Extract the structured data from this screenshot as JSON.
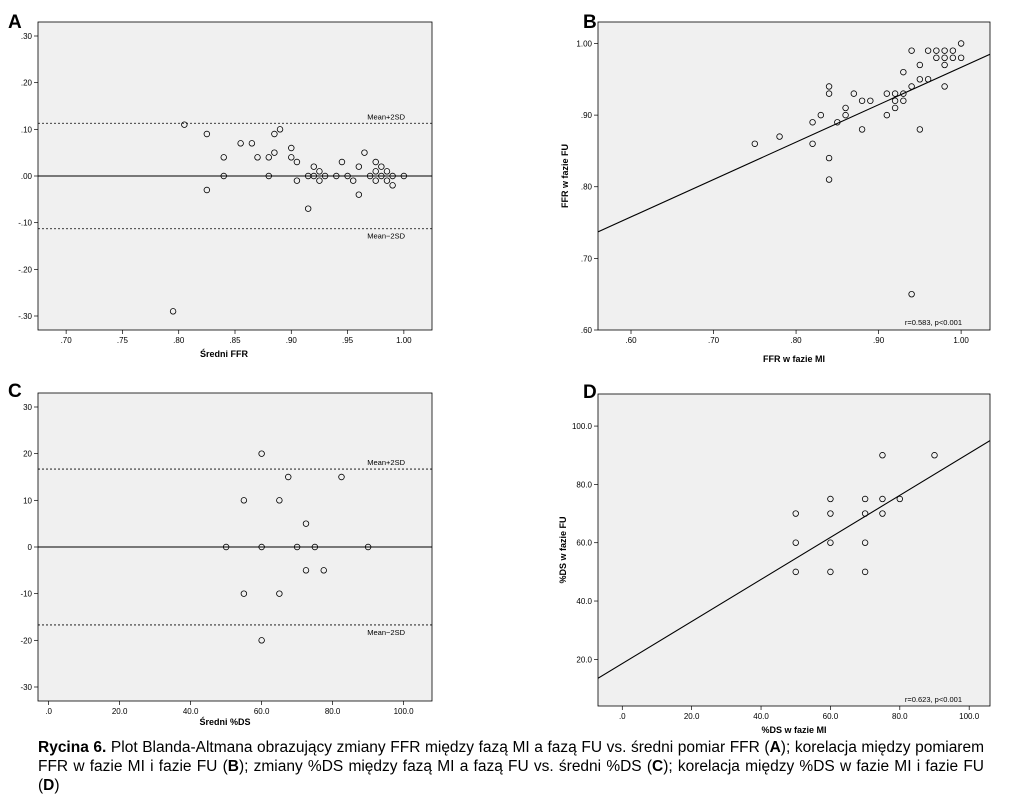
{
  "chart_data": [
    {
      "panel": "A",
      "type": "scatter",
      "xlabel": "Średni FFR",
      "ylabel": "",
      "xlim": [
        0.675,
        1.025
      ],
      "ylim": [
        -0.33,
        0.33
      ],
      "xticks": [
        0.7,
        0.75,
        0.8,
        0.85,
        0.9,
        0.95,
        1.0
      ],
      "xtick_labels": [
        ".70",
        ".75",
        ".80",
        ".85",
        ".90",
        ".95",
        "1.00"
      ],
      "yticks": [
        0.3,
        0.2,
        0.1,
        0.0,
        -0.1,
        -0.2,
        -0.3
      ],
      "ytick_labels": [
        ".30",
        ".20",
        ".10",
        ".00",
        "-.10",
        "-.20",
        "-.30"
      ],
      "grid": false,
      "points": [
        [
          0.795,
          -0.29
        ],
        [
          0.805,
          0.11
        ],
        [
          0.825,
          0.09
        ],
        [
          0.825,
          -0.03
        ],
        [
          0.84,
          0.04
        ],
        [
          0.84,
          0.0
        ],
        [
          0.855,
          0.07
        ],
        [
          0.865,
          0.07
        ],
        [
          0.87,
          0.04
        ],
        [
          0.88,
          0.04
        ],
        [
          0.88,
          0.0
        ],
        [
          0.885,
          0.09
        ],
        [
          0.885,
          0.05
        ],
        [
          0.89,
          0.1
        ],
        [
          0.9,
          0.06
        ],
        [
          0.9,
          0.04
        ],
        [
          0.905,
          0.03
        ],
        [
          0.905,
          -0.01
        ],
        [
          0.915,
          0.0
        ],
        [
          0.915,
          -0.07
        ],
        [
          0.92,
          0.02
        ],
        [
          0.92,
          0.0
        ],
        [
          0.925,
          -0.01
        ],
        [
          0.925,
          0.01
        ],
        [
          0.93,
          0.0
        ],
        [
          0.94,
          0.0
        ],
        [
          0.945,
          0.03
        ],
        [
          0.95,
          0.0
        ],
        [
          0.955,
          -0.01
        ],
        [
          0.96,
          -0.04
        ],
        [
          0.96,
          0.02
        ],
        [
          0.965,
          0.05
        ],
        [
          0.97,
          0.0
        ],
        [
          0.975,
          0.03
        ],
        [
          0.975,
          -0.01
        ],
        [
          0.975,
          0.01
        ],
        [
          0.98,
          0.0
        ],
        [
          0.98,
          0.02
        ],
        [
          0.985,
          -0.01
        ],
        [
          0.985,
          0.01
        ],
        [
          0.99,
          0.0
        ],
        [
          0.99,
          -0.02
        ],
        [
          1.0,
          0.0
        ]
      ],
      "hlines": [
        {
          "y": 0.0,
          "style": "solid",
          "label": ""
        },
        {
          "y": 0.113,
          "style": "dashed",
          "label": "Mean+2SD"
        },
        {
          "y": -0.113,
          "style": "dashed",
          "label": "Mean−2SD"
        }
      ]
    },
    {
      "panel": "B",
      "type": "scatter",
      "xlabel": "FFR w fazie MI",
      "ylabel": "FFR w fazie FU",
      "xlim": [
        0.56,
        1.035
      ],
      "ylim": [
        0.6,
        1.03
      ],
      "xticks": [
        0.6,
        0.7,
        0.8,
        0.9,
        1.0
      ],
      "xtick_labels": [
        ".60",
        ".70",
        ".80",
        ".90",
        "1.00"
      ],
      "yticks": [
        1.0,
        0.9,
        0.8,
        0.7,
        0.6
      ],
      "ytick_labels": [
        "1.00",
        ".90",
        ".80",
        ".70",
        ".60"
      ],
      "grid": false,
      "points": [
        [
          0.75,
          0.86
        ],
        [
          0.78,
          0.87
        ],
        [
          0.82,
          0.89
        ],
        [
          0.82,
          0.86
        ],
        [
          0.83,
          0.9
        ],
        [
          0.84,
          0.94
        ],
        [
          0.84,
          0.93
        ],
        [
          0.84,
          0.84
        ],
        [
          0.84,
          0.81
        ],
        [
          0.85,
          0.89
        ],
        [
          0.86,
          0.91
        ],
        [
          0.86,
          0.9
        ],
        [
          0.87,
          0.93
        ],
        [
          0.88,
          0.92
        ],
        [
          0.88,
          0.88
        ],
        [
          0.89,
          0.92
        ],
        [
          0.91,
          0.93
        ],
        [
          0.91,
          0.9
        ],
        [
          0.92,
          0.93
        ],
        [
          0.92,
          0.92
        ],
        [
          0.92,
          0.91
        ],
        [
          0.93,
          0.96
        ],
        [
          0.93,
          0.93
        ],
        [
          0.93,
          0.92
        ],
        [
          0.94,
          0.99
        ],
        [
          0.94,
          0.94
        ],
        [
          0.94,
          0.65
        ],
        [
          0.95,
          0.97
        ],
        [
          0.95,
          0.95
        ],
        [
          0.95,
          0.88
        ],
        [
          0.96,
          0.99
        ],
        [
          0.96,
          0.95
        ],
        [
          0.97,
          0.99
        ],
        [
          0.97,
          0.98
        ],
        [
          0.98,
          0.99
        ],
        [
          0.98,
          0.98
        ],
        [
          0.98,
          0.97
        ],
        [
          0.98,
          0.94
        ],
        [
          0.99,
          0.99
        ],
        [
          0.99,
          0.98
        ],
        [
          1.0,
          1.0
        ],
        [
          1.0,
          0.98
        ]
      ],
      "fit_line": {
        "x": [
          0.56,
          1.035
        ],
        "y": [
          0.737,
          0.985
        ]
      },
      "annotation": "r=0.583, p<0.001"
    },
    {
      "panel": "C",
      "type": "scatter",
      "xlabel": "Średni %DS",
      "ylabel": "",
      "xlim": [
        -3,
        108
      ],
      "ylim": [
        -33,
        33
      ],
      "xticks": [
        0,
        20,
        40,
        60,
        80,
        100
      ],
      "xtick_labels": [
        ".0",
        "20.0",
        "40.0",
        "60.0",
        "80.0",
        "100.0"
      ],
      "yticks": [
        30,
        20,
        10,
        0,
        -10,
        -20,
        -30
      ],
      "ytick_labels": [
        "30",
        "20",
        "10",
        "0",
        "-10",
        "-20",
        "-30"
      ],
      "grid": false,
      "points": [
        [
          50,
          0
        ],
        [
          55,
          10
        ],
        [
          55,
          -10
        ],
        [
          60,
          20
        ],
        [
          60,
          0
        ],
        [
          60,
          -20
        ],
        [
          65,
          10
        ],
        [
          65,
          -10
        ],
        [
          67.5,
          15
        ],
        [
          70,
          0
        ],
        [
          72.5,
          5
        ],
        [
          72.5,
          -5
        ],
        [
          75,
          0
        ],
        [
          77.5,
          -5
        ],
        [
          82.5,
          15
        ],
        [
          90,
          0
        ]
      ],
      "hlines": [
        {
          "y": 0.0,
          "style": "solid",
          "label": ""
        },
        {
          "y": 16.7,
          "style": "dashed",
          "label": "Mean+2SD"
        },
        {
          "y": -16.7,
          "style": "dashed",
          "label": "Mean−2SD"
        }
      ]
    },
    {
      "panel": "D",
      "type": "scatter",
      "xlabel": "%DS w fazie MI",
      "ylabel": "%DS w fazie FU",
      "xlim": [
        -7,
        106
      ],
      "ylim": [
        4,
        111
      ],
      "xticks": [
        0,
        20,
        40,
        60,
        80,
        100
      ],
      "xtick_labels": [
        ".0",
        "20.0",
        "40.0",
        "60.0",
        "80.0",
        "100.0"
      ],
      "yticks": [
        100,
        80,
        60,
        40,
        20
      ],
      "ytick_labels": [
        "100.0",
        "80.0",
        "60.0",
        "40.0",
        "20.0"
      ],
      "grid": false,
      "points": [
        [
          50,
          70
        ],
        [
          50,
          60
        ],
        [
          50,
          50
        ],
        [
          60,
          75
        ],
        [
          60,
          70
        ],
        [
          60,
          60
        ],
        [
          60,
          50
        ],
        [
          70,
          75
        ],
        [
          70,
          70
        ],
        [
          70,
          60
        ],
        [
          70,
          50
        ],
        [
          75,
          90
        ],
        [
          75,
          75
        ],
        [
          75,
          70
        ],
        [
          80,
          75
        ],
        [
          90,
          90
        ]
      ],
      "fit_line": {
        "x": [
          -7,
          106
        ],
        "y": [
          13.5,
          95
        ]
      },
      "annotation": "r=0.623, p<0.001"
    }
  ],
  "caption": {
    "label": "Rycina 6.",
    "parts": [
      {
        "t": " Plot Blanda-Altmana obrazujący zmiany FFR między fazą MI a fazą FU vs. średni pomiar FFR (",
        "b": false
      },
      {
        "t": "A",
        "b": true
      },
      {
        "t": "); korelacja między pomiarem FFR w fazie MI i fazie FU (",
        "b": false
      },
      {
        "t": "B",
        "b": true
      },
      {
        "t": "); zmiany %DS między fazą MI a fazą FU vs. średni %DS (",
        "b": false
      },
      {
        "t": "C",
        "b": true
      },
      {
        "t": "); korelacja między %DS w fazie MI i fazie FU (",
        "b": false
      },
      {
        "t": "D",
        "b": true
      },
      {
        "t": ")",
        "b": false
      }
    ]
  }
}
